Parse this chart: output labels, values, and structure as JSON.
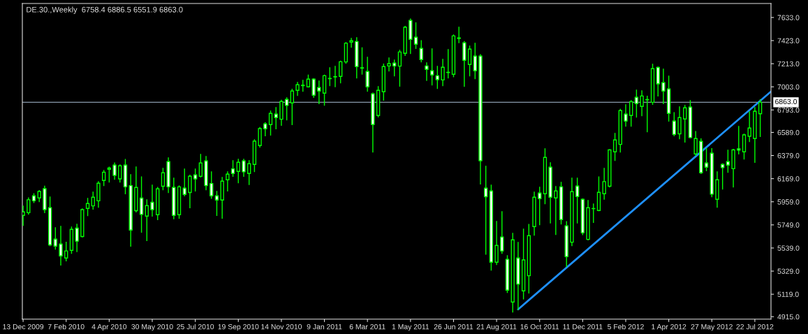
{
  "chart_data": {
    "type": "candlestick",
    "title": "DE.30.,Weekly  6758.4 6886.5 6551.9 6863.0",
    "series": [
      {
        "color": "#00ff00",
        "x": [
          "2009-12-13",
          "2009-12-20",
          "2009-12-27",
          "2010-01-03",
          "2010-01-10",
          "2010-01-17",
          "2010-01-24",
          "2010-01-31",
          "2010-02-07",
          "2010-02-14",
          "2010-02-21",
          "2010-02-28",
          "2010-03-07",
          "2010-03-14",
          "2010-03-21",
          "2010-03-28",
          "2010-04-04",
          "2010-04-11",
          "2010-04-18",
          "2010-04-25",
          "2010-05-02",
          "2010-05-09",
          "2010-05-16",
          "2010-05-23",
          "2010-05-30",
          "2010-06-06",
          "2010-06-13",
          "2010-06-20",
          "2010-06-27",
          "2010-07-04",
          "2010-07-11",
          "2010-07-18",
          "2010-07-25",
          "2010-08-01",
          "2010-08-08",
          "2010-08-15",
          "2010-08-22",
          "2010-08-29",
          "2010-09-05",
          "2010-09-12",
          "2010-09-19",
          "2010-09-26",
          "2010-10-03",
          "2010-10-10",
          "2010-10-17",
          "2010-10-24",
          "2010-10-31",
          "2010-11-07",
          "2010-11-14",
          "2010-11-21",
          "2010-11-28",
          "2010-12-05",
          "2010-12-12",
          "2010-12-19",
          "2010-12-26",
          "2011-01-02",
          "2011-01-09",
          "2011-01-16",
          "2011-01-23",
          "2011-01-30",
          "2011-02-06",
          "2011-02-13",
          "2011-02-20",
          "2011-02-27",
          "2011-03-06",
          "2011-03-13",
          "2011-03-20",
          "2011-03-27",
          "2011-04-03",
          "2011-04-10",
          "2011-04-17",
          "2011-04-24",
          "2011-05-01",
          "2011-05-08",
          "2011-05-15",
          "2011-05-22",
          "2011-05-29",
          "2011-06-05",
          "2011-06-12",
          "2011-06-19",
          "2011-06-26",
          "2011-07-03",
          "2011-07-10",
          "2011-07-17",
          "2011-07-24",
          "2011-07-31",
          "2011-08-07",
          "2011-08-14",
          "2011-08-21",
          "2011-08-28",
          "2011-09-04",
          "2011-09-11",
          "2011-09-18",
          "2011-09-25",
          "2011-10-02",
          "2011-10-09",
          "2011-10-16",
          "2011-10-23",
          "2011-10-30",
          "2011-11-06",
          "2011-11-13",
          "2011-11-20",
          "2011-11-27",
          "2011-12-04",
          "2011-12-11",
          "2011-12-18",
          "2011-12-25",
          "2012-01-01",
          "2012-01-08",
          "2012-01-15",
          "2012-01-22",
          "2012-01-29",
          "2012-02-05",
          "2012-02-12",
          "2012-02-19",
          "2012-02-26",
          "2012-03-04",
          "2012-03-11",
          "2012-03-18",
          "2012-03-25",
          "2012-04-01",
          "2012-04-08",
          "2012-04-15",
          "2012-04-22",
          "2012-04-29",
          "2012-05-06",
          "2012-05-13",
          "2012-05-20",
          "2012-05-27",
          "2012-06-03",
          "2012-06-10",
          "2012-06-17",
          "2012-06-24",
          "2012-07-01",
          "2012-07-08",
          "2012-07-15",
          "2012-07-22",
          "2012-07-29"
        ],
        "ohlc": [
          [
            5835,
            5920,
            5744,
            5867
          ],
          [
            5860,
            5994,
            5846,
            5977
          ],
          [
            6013,
            6032,
            5952,
            5968
          ],
          [
            5994,
            6061,
            5960,
            6053
          ],
          [
            6078,
            6100,
            5860,
            5888
          ],
          [
            5905,
            6002,
            5560,
            5567
          ],
          [
            5619,
            5723,
            5528,
            5556
          ],
          [
            5575,
            5736,
            5385,
            5467
          ],
          [
            5448,
            5592,
            5423,
            5512
          ],
          [
            5518,
            5730,
            5491,
            5708
          ],
          [
            5719,
            5755,
            5507,
            5601
          ],
          [
            5643,
            5895,
            5639,
            5888
          ],
          [
            5899,
            5990,
            5833,
            5943
          ],
          [
            5922,
            6047,
            5892,
            6000
          ],
          [
            5968,
            6142,
            5909,
            6127
          ],
          [
            6153,
            6244,
            6106,
            6227
          ],
          [
            6254,
            6273,
            6138,
            6265
          ],
          [
            6292,
            6311,
            6163,
            6199
          ],
          [
            6167,
            6294,
            6138,
            6286
          ],
          [
            6292,
            6343,
            6032,
            6095
          ],
          [
            6106,
            6205,
            5556,
            5702
          ],
          [
            5878,
            6275,
            5867,
            6089
          ],
          [
            5992,
            6184,
            5683,
            5844
          ],
          [
            5829,
            5977,
            5607,
            5924
          ],
          [
            5954,
            6110,
            5829,
            5888
          ],
          [
            5842,
            6089,
            5797,
            6076
          ],
          [
            6100,
            6263,
            6068,
            6222
          ],
          [
            6324,
            6358,
            6043,
            6095
          ],
          [
            6089,
            6174,
            5804,
            5835
          ],
          [
            5842,
            6104,
            5810,
            6095
          ],
          [
            6083,
            6256,
            6013,
            6026
          ],
          [
            6043,
            6201,
            5905,
            6191
          ],
          [
            6203,
            6256,
            6057,
            6167
          ],
          [
            6191,
            6390,
            6184,
            6311
          ],
          [
            6330,
            6370,
            6068,
            6106
          ],
          [
            6125,
            6231,
            5990,
            6013
          ],
          [
            6013,
            6053,
            5835,
            5975
          ],
          [
            5975,
            6180,
            5810,
            6146
          ],
          [
            6159,
            6231,
            6057,
            6210
          ],
          [
            6258,
            6332,
            6191,
            6216
          ],
          [
            6235,
            6345,
            6131,
            6318
          ],
          [
            6330,
            6345,
            6191,
            6231
          ],
          [
            6216,
            6332,
            6115,
            6305
          ],
          [
            6299,
            6523,
            6233,
            6510
          ],
          [
            6470,
            6633,
            6455,
            6624
          ],
          [
            6667,
            6677,
            6559,
            6622
          ],
          [
            6660,
            6783,
            6565,
            6762
          ],
          [
            6756,
            6815,
            6622,
            6724
          ],
          [
            6709,
            6882,
            6654,
            6870
          ],
          [
            6889,
            6904,
            6703,
            6834
          ],
          [
            6857,
            6982,
            6660,
            6965
          ],
          [
            6971,
            7043,
            6925,
            7022
          ],
          [
            7014,
            7062,
            6963,
            7017
          ],
          [
            7003,
            7109,
            7001,
            7073
          ],
          [
            7073,
            7077,
            6908,
            6927
          ],
          [
            6997,
            7056,
            6851,
            6965
          ],
          [
            6946,
            7109,
            6836,
            7104
          ],
          [
            7078,
            7176,
            7014,
            7080
          ],
          [
            7093,
            7189,
            7005,
            7095
          ],
          [
            7098,
            7236,
            7039,
            7231
          ],
          [
            7229,
            7405,
            7217,
            7399
          ],
          [
            7409,
            7443,
            7363,
            7422
          ],
          [
            7415,
            7449,
            7083,
            7187
          ],
          [
            7176,
            7358,
            7119,
            7172
          ],
          [
            7143,
            7272,
            6963,
            7003
          ],
          [
            6940,
            6946,
            6411,
            6660
          ],
          [
            6743,
            7005,
            6730,
            6971
          ],
          [
            6959,
            7210,
            6882,
            7187
          ],
          [
            7193,
            7265,
            7147,
            7214
          ],
          [
            7219,
            7246,
            7102,
            7193
          ],
          [
            7191,
            7335,
            7009,
            7320
          ],
          [
            7308,
            7553,
            7289,
            7544
          ],
          [
            7606,
            7619,
            7306,
            7435
          ],
          [
            7454,
            7585,
            7352,
            7390
          ],
          [
            7352,
            7422,
            7229,
            7251
          ],
          [
            7193,
            7221,
            7062,
            7162
          ],
          [
            7149,
            7348,
            7020,
            7111
          ],
          [
            7104,
            7189,
            6988,
            7068
          ],
          [
            7066,
            7253,
            7014,
            7181
          ],
          [
            7133,
            7341,
            7083,
            7135
          ],
          [
            7117,
            7474,
            7094,
            7466
          ],
          [
            7447,
            7544,
            7405,
            7443
          ],
          [
            7403,
            7415,
            7007,
            7244
          ],
          [
            7206,
            7373,
            7102,
            7346
          ],
          [
            7282,
            7399,
            7077,
            7149
          ],
          [
            7282,
            7295,
            6121,
            6332
          ],
          [
            6083,
            6282,
            5482,
            6005
          ],
          [
            6057,
            6110,
            5338,
            5410
          ],
          [
            5410,
            5780,
            5389,
            5562
          ],
          [
            5639,
            5869,
            5491,
            5512
          ],
          [
            5436,
            5469,
            5135,
            5156
          ],
          [
            5048,
            5672,
            4957,
            5613
          ],
          [
            5448,
            5590,
            4979,
            5211
          ],
          [
            5150,
            5710,
            5076,
            5431
          ],
          [
            5287,
            5753,
            5131,
            5651
          ],
          [
            5734,
            6047,
            5655,
            6000
          ],
          [
            6038,
            6091,
            5751,
            5988
          ],
          [
            6032,
            6440,
            5941,
            6362
          ],
          [
            6273,
            6313,
            5766,
            6000
          ],
          [
            5994,
            6098,
            5662,
            6057
          ],
          [
            6095,
            6136,
            5757,
            5797
          ],
          [
            5740,
            5778,
            5370,
            5461
          ],
          [
            5592,
            6174,
            5560,
            6051
          ],
          [
            6102,
            6174,
            5766,
            6007
          ],
          [
            5981,
            5984,
            5660,
            5677
          ],
          [
            5617,
            5971,
            5613,
            5905
          ],
          [
            5896,
            5939,
            5772,
            5898
          ],
          [
            5880,
            6184,
            5878,
            6045
          ],
          [
            6032,
            6263,
            5983,
            6142
          ],
          [
            6100,
            6432,
            6093,
            6430
          ],
          [
            6413,
            6580,
            6335,
            6521
          ],
          [
            6480,
            6798,
            6411,
            6787
          ],
          [
            6756,
            6840,
            6645,
            6692
          ],
          [
            6743,
            6878,
            6645,
            6868
          ],
          [
            6908,
            6973,
            6728,
            6851
          ],
          [
            6825,
            6967,
            6741,
            6920
          ],
          [
            6886,
            6918,
            6595,
            6888
          ],
          [
            6863,
            7208,
            6844,
            7168
          ],
          [
            7179,
            7183,
            6920,
            7030
          ],
          [
            7041,
            7164,
            6851,
            6965
          ],
          [
            6984,
            7100,
            6692,
            6762
          ],
          [
            6692,
            6768,
            6559,
            6571
          ],
          [
            6576,
            6821,
            6531,
            6724
          ],
          [
            6711,
            6834,
            6502,
            6813
          ],
          [
            6819,
            6878,
            6540,
            6542
          ],
          [
            6394,
            6597,
            6379,
            6533
          ],
          [
            6508,
            6531,
            6216,
            6222
          ],
          [
            6311,
            6442,
            6241,
            6273
          ],
          [
            6400,
            6442,
            6005,
            6028
          ],
          [
            5981,
            6231,
            5909,
            6159
          ],
          [
            6299,
            6303,
            6074,
            6269
          ],
          [
            6324,
            6428,
            6227,
            6292
          ],
          [
            6260,
            6436,
            6093,
            6430
          ],
          [
            6440,
            6643,
            6394,
            6428
          ],
          [
            6413,
            6573,
            6347,
            6567
          ],
          [
            6554,
            6777,
            6506,
            6629
          ],
          [
            6533,
            6815,
            6317,
            6781
          ],
          [
            6758.4,
            6886.5,
            6551.9,
            6863.0
          ]
        ]
      },
      {
        "type": "line",
        "color": "#1e90ff",
        "x": [
          "2011-09-18",
          "2012-08-12"
        ],
        "values": [
          4982,
          6960
        ]
      }
    ],
    "xlim": [
      "2009-12-12",
      "2012-08-12"
    ],
    "xticks": [
      {
        "value": "2009-12-13",
        "label": "13 Dec 2009"
      },
      {
        "value": "2010-02-07",
        "label": "7 Feb 2010"
      },
      {
        "value": "2010-04-04",
        "label": "4 Apr 2010"
      },
      {
        "value": "2010-05-30",
        "label": "30 May 2010"
      },
      {
        "value": "2010-07-25",
        "label": "25 Jul 2010"
      },
      {
        "value": "2010-09-19",
        "label": "19 Sep 2010"
      },
      {
        "value": "2010-11-14",
        "label": "14 Nov 2010"
      },
      {
        "value": "2011-01-09",
        "label": "9 Jan 2011"
      },
      {
        "value": "2011-03-06",
        "label": "6 Mar 2011"
      },
      {
        "value": "2011-05-01",
        "label": "1 May 2011"
      },
      {
        "value": "2011-06-26",
        "label": "26 Jun 2011"
      },
      {
        "value": "2011-08-21",
        "label": "21 Aug 2011"
      },
      {
        "value": "2011-10-16",
        "label": "16 Oct 2011"
      },
      {
        "value": "2011-12-11",
        "label": "11 Dec 2011"
      },
      {
        "value": "2012-02-05",
        "label": "5 Feb 2012"
      },
      {
        "value": "2012-04-01",
        "label": "1 Apr 2012"
      },
      {
        "value": "2012-05-27",
        "label": "27 May 2012"
      },
      {
        "value": "2012-07-22",
        "label": "22 Jul 2012"
      }
    ],
    "ylim": [
      4893,
      7760
    ],
    "yticks": [
      {
        "value": 7633,
        "label": "7633.0"
      },
      {
        "value": 7423,
        "label": "7423.0"
      },
      {
        "value": 7213,
        "label": "7213.0"
      },
      {
        "value": 7003,
        "label": "7003.0"
      },
      {
        "value": 6793,
        "label": "6793.0"
      },
      {
        "value": 6589,
        "label": "6589.0"
      },
      {
        "value": 6379,
        "label": "6379.0"
      },
      {
        "value": 6169,
        "label": "6169.0"
      },
      {
        "value": 5959,
        "label": "5959.0"
      },
      {
        "value": 5749,
        "label": "5749.0"
      },
      {
        "value": 5539,
        "label": "5539.0"
      },
      {
        "value": 5329,
        "label": "5329.0"
      },
      {
        "value": 5119,
        "label": "5119.0"
      },
      {
        "value": 4915,
        "label": "4915.0"
      }
    ],
    "ref_lines": [
      {
        "axis": "y",
        "value": 6863,
        "label": "6863.0",
        "color": "#8899aa"
      }
    ],
    "grid": false,
    "legend": false
  }
}
